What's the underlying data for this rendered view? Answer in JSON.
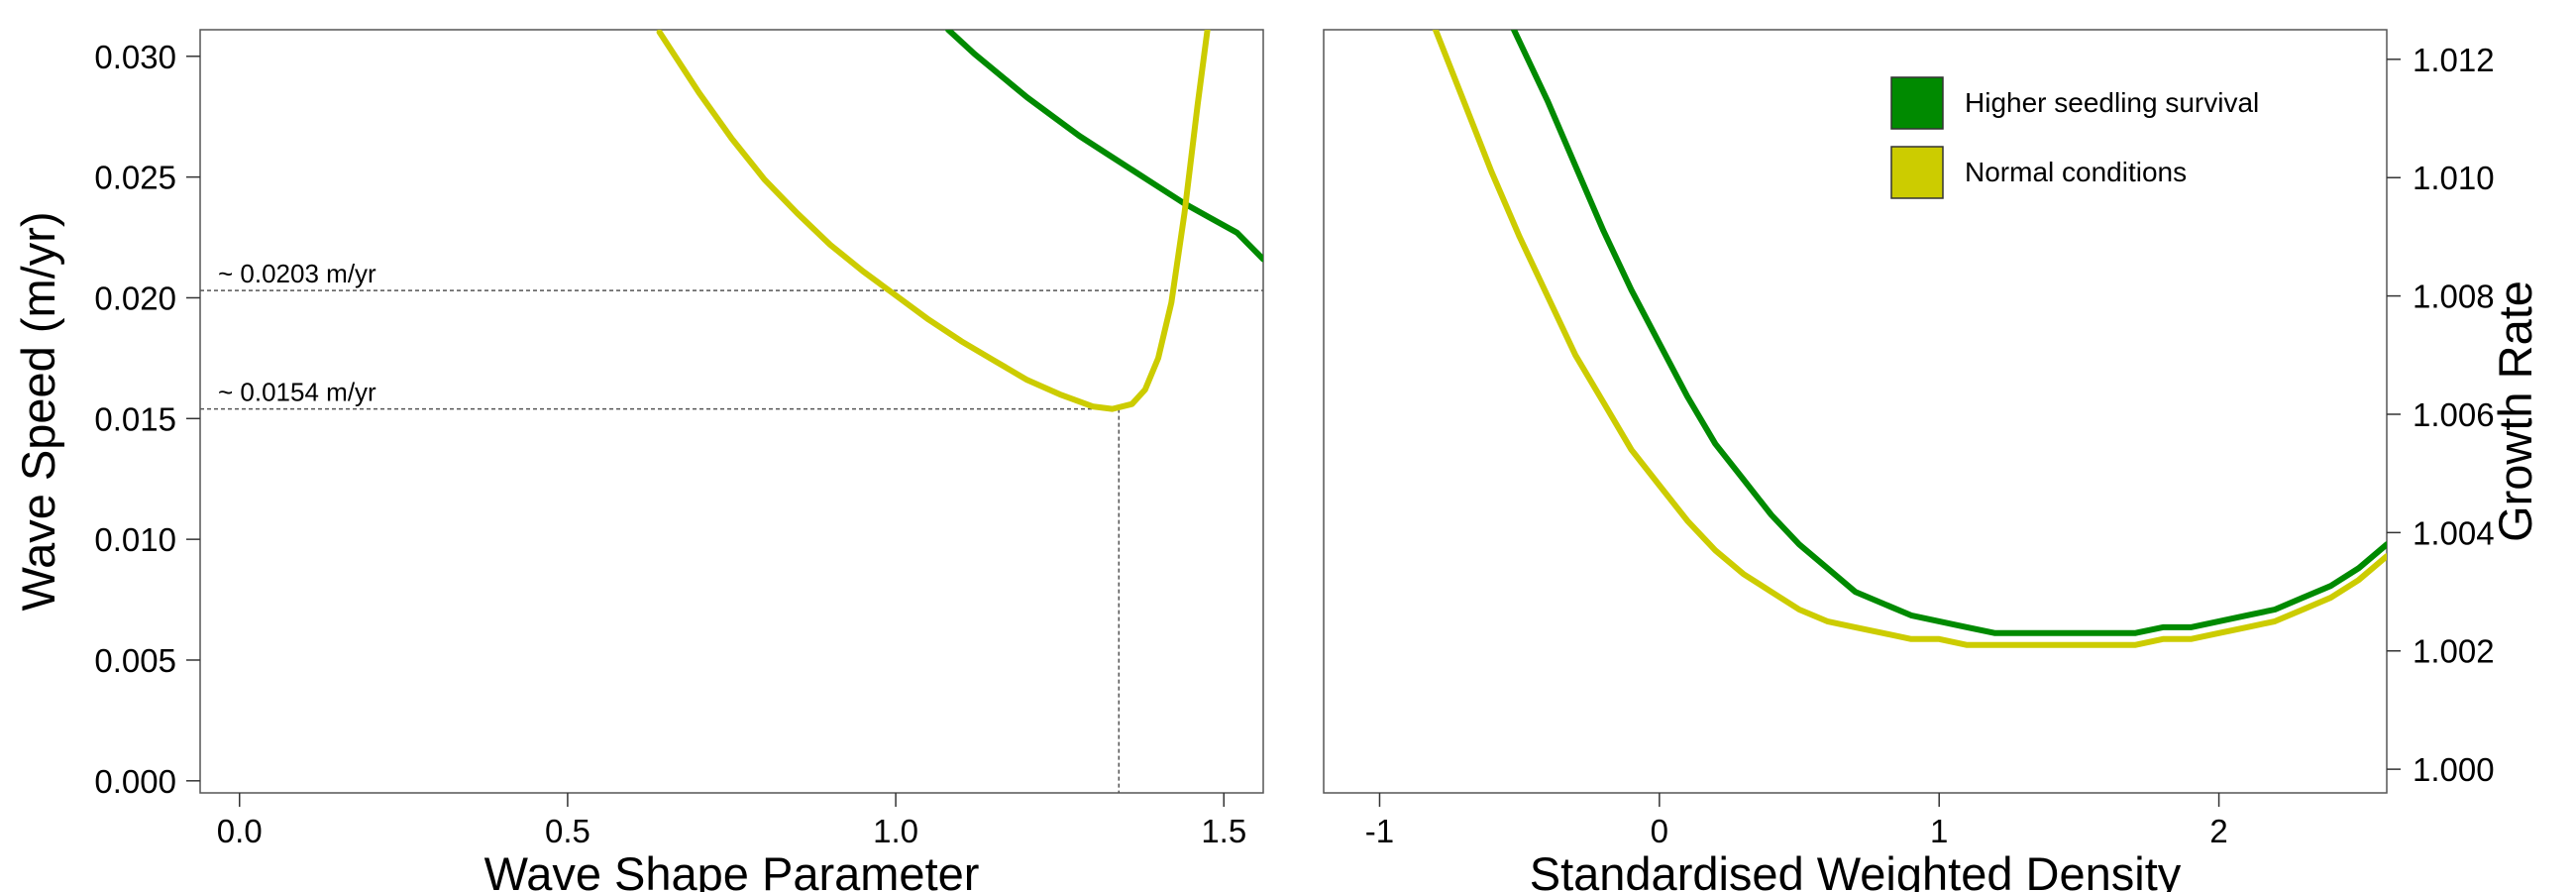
{
  "colors": {
    "higher": "#008a00",
    "normal": "#cccc00",
    "frame": "#555555",
    "guide": "#555555"
  },
  "chart_data": [
    {
      "type": "line",
      "xlabel": "Wave Shape Parameter",
      "ylabel": "Wave Speed (m/yr)",
      "xlim": [
        -0.06,
        1.56
      ],
      "ylim": [
        -0.0005,
        0.0311
      ],
      "x_ticks": [
        0.0,
        0.5,
        1.0,
        1.5
      ],
      "x_tick_labels": [
        "0.0",
        "0.5",
        "1.0",
        "1.5"
      ],
      "y_ticks": [
        0.0,
        0.005,
        0.01,
        0.015,
        0.02,
        0.025,
        0.03
      ],
      "y_tick_labels": [
        "0.000",
        "0.005",
        "0.010",
        "0.015",
        "0.020",
        "0.025",
        "0.030"
      ],
      "grid": false,
      "series": [
        {
          "name": "Higher seedling survival",
          "color_key": "higher",
          "x": [
            1.08,
            1.12,
            1.16,
            1.2,
            1.24,
            1.28,
            1.32,
            1.36,
            1.4,
            1.44,
            1.48,
            1.52,
            1.56
          ],
          "y": [
            0.0311,
            0.0301,
            0.0292,
            0.0283,
            0.0275,
            0.0267,
            0.026,
            0.0253,
            0.0246,
            0.0239,
            0.0233,
            0.0227,
            0.0216
          ]
        },
        {
          "name": "Normal conditions",
          "color_key": "normal",
          "x": [
            0.64,
            0.7,
            0.75,
            0.8,
            0.85,
            0.9,
            0.95,
            1.0,
            1.05,
            1.1,
            1.15,
            1.2,
            1.25,
            1.3,
            1.33,
            1.36,
            1.38,
            1.4,
            1.42,
            1.44,
            1.46,
            1.475
          ],
          "y": [
            0.031,
            0.0285,
            0.0266,
            0.0249,
            0.0235,
            0.0222,
            0.0211,
            0.0201,
            0.0191,
            0.0182,
            0.0174,
            0.0166,
            0.016,
            0.0155,
            0.0154,
            0.0156,
            0.0162,
            0.0175,
            0.0198,
            0.0235,
            0.028,
            0.0311
          ]
        }
      ],
      "annotations": [
        {
          "text": "~ 0.0203 m/yr",
          "y": 0.0203,
          "x_end": 1.56
        },
        {
          "text": "~ 0.0154 m/yr",
          "y": 0.0154,
          "x_end": 1.34
        }
      ],
      "vertical_guide": {
        "x": 1.34,
        "y_from": -0.0005,
        "y_to": 0.0154
      }
    },
    {
      "type": "line",
      "xlabel": "Standardised Weighted Density",
      "ylabel": "Growth Rate",
      "ylabel_side": "right",
      "xlim": [
        -1.2,
        2.6
      ],
      "ylim": [
        0.9996,
        1.0125
      ],
      "x_ticks": [
        -1,
        0,
        1,
        2
      ],
      "x_tick_labels": [
        "-1",
        "0",
        "1",
        "2"
      ],
      "y_ticks": [
        1.0,
        1.002,
        1.004,
        1.006,
        1.008,
        1.01,
        1.012
      ],
      "y_tick_labels": [
        "1.000",
        "1.002",
        "1.004",
        "1.006",
        "1.008",
        "1.010",
        "1.012"
      ],
      "grid": false,
      "legend_position": "top-right",
      "series": [
        {
          "name": "Higher seedling survival",
          "color_key": "higher",
          "x": [
            -0.52,
            -0.4,
            -0.3,
            -0.2,
            -0.1,
            0.0,
            0.1,
            0.2,
            0.3,
            0.4,
            0.5,
            0.6,
            0.7,
            0.8,
            0.9,
            1.0,
            1.1,
            1.2,
            1.3,
            1.4,
            1.5,
            1.6,
            1.7,
            1.8,
            1.9,
            2.0,
            2.1,
            2.2,
            2.3,
            2.4,
            2.5,
            2.6
          ],
          "y": [
            1.0125,
            1.0113,
            1.0102,
            1.0091,
            1.0081,
            1.0072,
            1.0063,
            1.0055,
            1.0049,
            1.0043,
            1.0038,
            1.0034,
            1.003,
            1.0028,
            1.0026,
            1.0025,
            1.0024,
            1.0023,
            1.0023,
            1.0023,
            1.0023,
            1.0023,
            1.0023,
            1.0024,
            1.0024,
            1.0025,
            1.0026,
            1.0027,
            1.0029,
            1.0031,
            1.0034,
            1.0038
          ]
        },
        {
          "name": "Normal conditions",
          "color_key": "normal",
          "x": [
            -0.8,
            -0.7,
            -0.6,
            -0.5,
            -0.4,
            -0.3,
            -0.2,
            -0.1,
            0.0,
            0.1,
            0.2,
            0.3,
            0.4,
            0.5,
            0.6,
            0.7,
            0.8,
            0.9,
            1.0,
            1.1,
            1.2,
            1.3,
            1.4,
            1.5,
            1.6,
            1.7,
            1.8,
            1.9,
            2.0,
            2.1,
            2.2,
            2.3,
            2.4,
            2.5,
            2.6
          ],
          "y": [
            1.0125,
            1.0113,
            1.0101,
            1.009,
            1.008,
            1.007,
            1.0062,
            1.0054,
            1.0048,
            1.0042,
            1.0037,
            1.0033,
            1.003,
            1.0027,
            1.0025,
            1.0024,
            1.0023,
            1.0022,
            1.0022,
            1.0021,
            1.0021,
            1.0021,
            1.0021,
            1.0021,
            1.0021,
            1.0021,
            1.0022,
            1.0022,
            1.0023,
            1.0024,
            1.0025,
            1.0027,
            1.0029,
            1.0032,
            1.0036
          ]
        }
      ],
      "legend": {
        "entries": [
          {
            "label": "Higher seedling survival",
            "color_key": "higher"
          },
          {
            "label": "Normal conditions",
            "color_key": "normal"
          }
        ]
      }
    }
  ]
}
